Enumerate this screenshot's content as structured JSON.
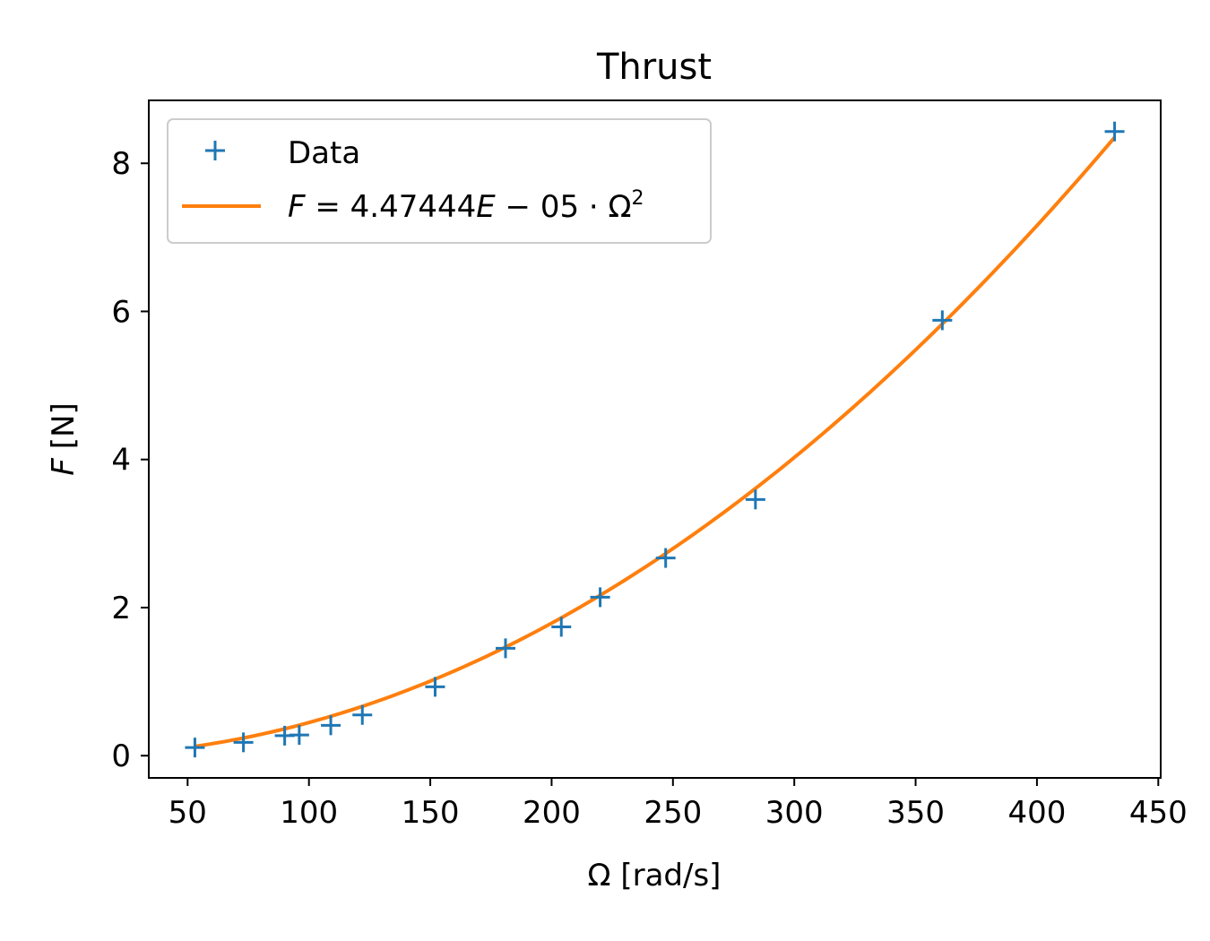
{
  "chart_data": {
    "type": "scatter",
    "title": "Thrust",
    "xlabel": "Ω [rad/s]",
    "ylabel_symbol": "F",
    "ylabel_unit": "[N]",
    "xlim": [
      34,
      451
    ],
    "ylim": [
      -0.3,
      8.85
    ],
    "xticks": [
      50,
      100,
      150,
      200,
      250,
      300,
      350,
      400,
      450
    ],
    "yticks": [
      0,
      2,
      4,
      6,
      8
    ],
    "grid": false,
    "legend_position": "upper-left",
    "series": [
      {
        "name": "Data",
        "type": "scatter",
        "marker": "+",
        "color": "#1f77b4",
        "x": [
          53,
          73,
          90,
          96,
          109,
          122,
          152,
          181,
          204,
          220,
          247,
          284,
          361,
          432
        ],
        "y": [
          0.11,
          0.18,
          0.27,
          0.28,
          0.41,
          0.55,
          0.93,
          1.45,
          1.74,
          2.14,
          2.67,
          3.46,
          5.88,
          8.43
        ]
      },
      {
        "name": "F = 4.47444E − 05 · Ω²",
        "legend_parts": {
          "symbol": "F",
          "middle": " = 4.47444",
          "e": "E",
          "tail": " − 05 · Ω",
          "sup": "2"
        },
        "type": "line",
        "color": "#ff7f0e",
        "coefficient": 4.47444e-05,
        "x_range": [
          53,
          432
        ]
      }
    ]
  }
}
